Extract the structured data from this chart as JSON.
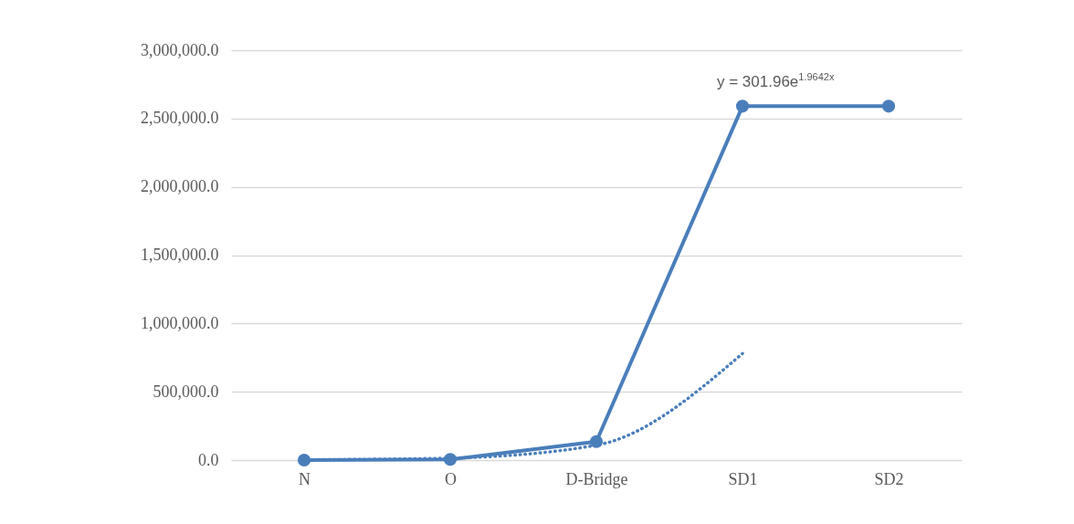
{
  "chart_data": {
    "type": "line",
    "categories": [
      "N",
      "O",
      "D-Bridge",
      "SD1",
      "SD2"
    ],
    "ylim": [
      0,
      3000000
    ],
    "yticks": [
      {
        "value": 0,
        "label": "0.0"
      },
      {
        "value": 500000,
        "label": "500,000.0"
      },
      {
        "value": 1000000,
        "label": "1,000,000.0"
      },
      {
        "value": 1500000,
        "label": "1,500,000.0"
      },
      {
        "value": 2000000,
        "label": "2,000,000.0"
      },
      {
        "value": 2500000,
        "label": "2,500,000.0"
      },
      {
        "value": 3000000,
        "label": "3,000,000.0"
      }
    ],
    "grid": "y",
    "series": [
      {
        "color": "#4a7ebb",
        "marker": "circle",
        "line_style": "solid",
        "values": [
          0,
          5000,
          135000,
          2590000,
          2590000
        ]
      },
      {
        "color": "#4a7ebb",
        "marker": "none",
        "line_style": "dotted",
        "values": [
          2000,
          15000,
          109000,
          780000,
          null
        ]
      }
    ],
    "annotations": [
      "y = 301.96e$^{1.9642x}$"
    ]
  }
}
